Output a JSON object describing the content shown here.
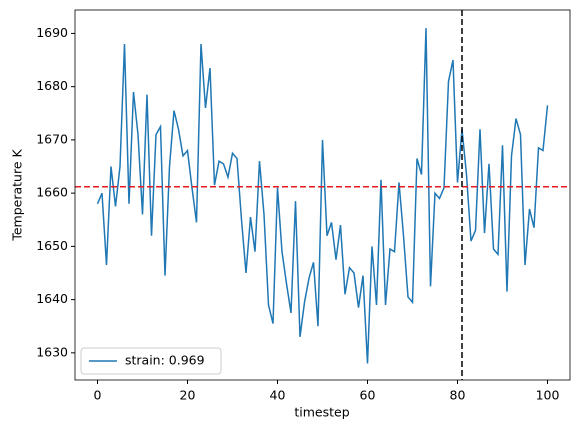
{
  "chart_data": {
    "type": "line",
    "xlabel": "timestep",
    "ylabel": "Temperature K",
    "x": [
      0,
      1,
      2,
      3,
      4,
      5,
      6,
      7,
      8,
      9,
      10,
      11,
      12,
      13,
      14,
      15,
      16,
      17,
      18,
      19,
      20,
      21,
      22,
      23,
      24,
      25,
      26,
      27,
      28,
      29,
      30,
      31,
      32,
      33,
      34,
      35,
      36,
      37,
      38,
      39,
      40,
      41,
      42,
      43,
      44,
      45,
      46,
      47,
      48,
      49,
      50,
      51,
      52,
      53,
      54,
      55,
      56,
      57,
      58,
      59,
      60,
      61,
      62,
      63,
      64,
      65,
      66,
      67,
      68,
      69,
      70,
      71,
      72,
      73,
      74,
      75,
      76,
      77,
      78,
      79,
      80,
      81,
      82,
      83,
      84,
      85,
      86,
      87,
      88,
      89,
      90,
      91,
      92,
      93,
      94,
      95,
      96,
      97,
      98,
      99,
      100
    ],
    "series": [
      {
        "name": "strain: 0.969",
        "color": "#1f77b4",
        "values": [
          1658,
          1660,
          1646.5,
          1665,
          1657.5,
          1665,
          1688,
          1658,
          1679,
          1671,
          1656,
          1678.5,
          1652,
          1671,
          1672.5,
          1644.5,
          1665,
          1675.5,
          1672,
          1667,
          1668,
          1661,
          1654.5,
          1688,
          1676,
          1683.5,
          1661.5,
          1666,
          1665.5,
          1663,
          1667.5,
          1666.5,
          1655,
          1645,
          1655.5,
          1649,
          1666,
          1656,
          1639,
          1635.5,
          1661,
          1649,
          1643,
          1637.5,
          1658.5,
          1633,
          1639.5,
          1644,
          1647,
          1635,
          1670,
          1652,
          1654.5,
          1647.5,
          1654,
          1641,
          1646,
          1645,
          1638.5,
          1644.5,
          1628,
          1650,
          1639,
          1662.5,
          1639,
          1649.5,
          1649,
          1662,
          1652,
          1640.5,
          1639.5,
          1666.5,
          1663.5,
          1691,
          1642.5,
          1660,
          1659,
          1661,
          1681,
          1685,
          1662,
          1672,
          1663.5,
          1651,
          1653,
          1672,
          1652.5,
          1665.5,
          1649.5,
          1648.5,
          1669,
          1641.5,
          1667,
          1674,
          1671,
          1646.5,
          1657,
          1653.5,
          1668.5,
          1668,
          1676.5
        ]
      }
    ],
    "hline": {
      "value": 1661.2,
      "color": "#e41a1c"
    },
    "vline": {
      "value": 81,
      "color": "#000000"
    },
    "xlim": [
      -5,
      105
    ],
    "ylim": [
      1624.9,
      1694.4
    ],
    "xticks": [
      0,
      20,
      40,
      60,
      80,
      100
    ],
    "yticks": [
      1630,
      1640,
      1650,
      1660,
      1670,
      1680,
      1690
    ],
    "legend": "lower left"
  }
}
